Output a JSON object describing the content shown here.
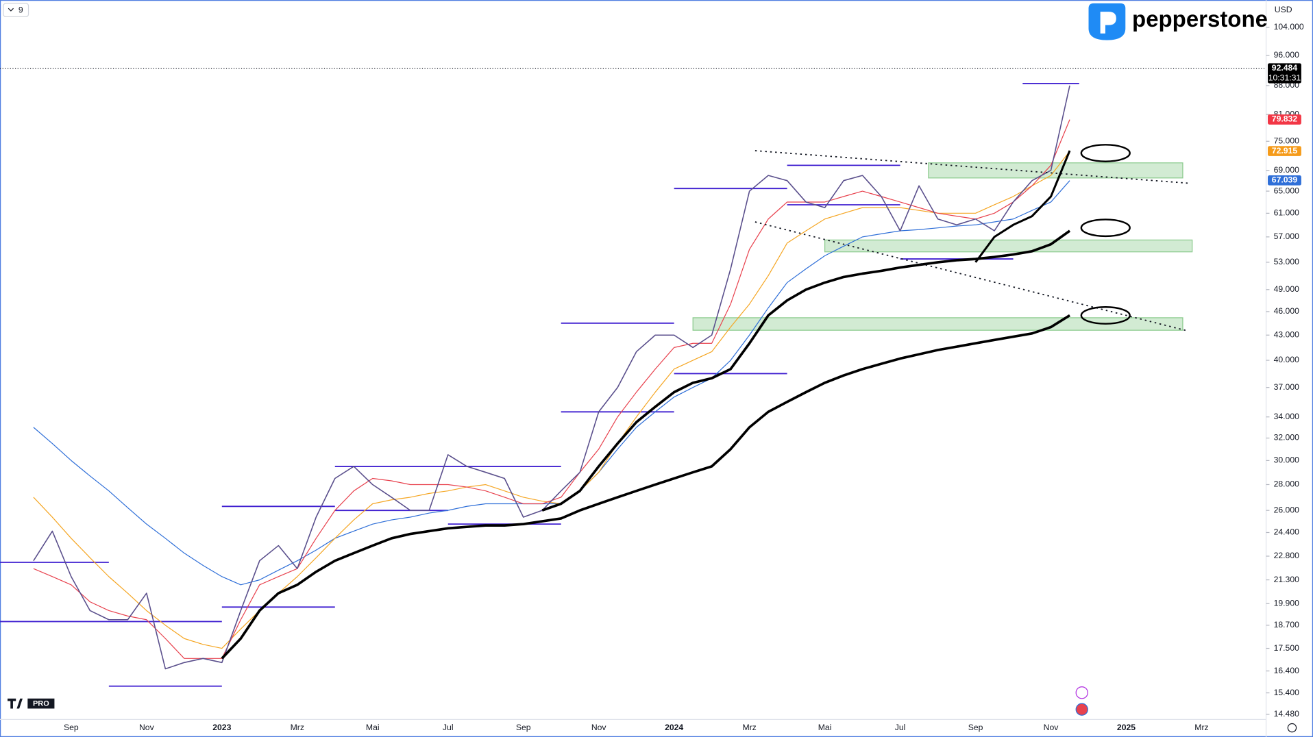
{
  "chart_data": {
    "type": "line",
    "log_scale": true,
    "interval": "9",
    "currency": "USD",
    "brand": "pepperstone",
    "logo_tag": "PRO",
    "categories": [
      null,
      null,
      "Sep",
      null,
      null,
      null,
      "Nov",
      null,
      null,
      null,
      "2023",
      null,
      null,
      null,
      "Mrz",
      null,
      null,
      null,
      "Mai",
      null,
      null,
      null,
      "Jul",
      null,
      null,
      null,
      "Sep",
      null,
      null,
      null,
      "Nov",
      null,
      null,
      null,
      "2024",
      null,
      null,
      null,
      "Mrz",
      null,
      null,
      null,
      "Mai",
      null,
      null,
      null,
      "Jul",
      null,
      null,
      null,
      "Sep",
      null,
      null,
      null,
      "Nov",
      null,
      null,
      null,
      "2025",
      null,
      null,
      null,
      "Mrz"
    ],
    "ylim": [
      14.27,
      112.5
    ],
    "yticks": [
      {
        "value": 104,
        "label": "104.000"
      },
      {
        "value": 96,
        "label": "96.000"
      },
      {
        "value": 88,
        "label": "88.000"
      },
      {
        "value": 81,
        "label": "81.000"
      },
      {
        "value": 75,
        "label": "75.000"
      },
      {
        "value": 69,
        "label": "69.000"
      },
      {
        "value": 65,
        "label": "65.000"
      },
      {
        "value": 61,
        "label": "61.000"
      },
      {
        "value": 57,
        "label": "57.000"
      },
      {
        "value": 53,
        "label": "53.000"
      },
      {
        "value": 49,
        "label": "49.000"
      },
      {
        "value": 46,
        "label": "46.000"
      },
      {
        "value": 43,
        "label": "43.000"
      },
      {
        "value": 40,
        "label": "40.000"
      },
      {
        "value": 37,
        "label": "37.000"
      },
      {
        "value": 34,
        "label": "34.000"
      },
      {
        "value": 32,
        "label": "32.000"
      },
      {
        "value": 30,
        "label": "30.000"
      },
      {
        "value": 28,
        "label": "28.000"
      },
      {
        "value": 26,
        "label": "26.000"
      },
      {
        "value": 24.4,
        "label": "24.400"
      },
      {
        "value": 22.8,
        "label": "22.800"
      },
      {
        "value": 21.3,
        "label": "21.300"
      },
      {
        "value": 19.9,
        "label": "19.900"
      },
      {
        "value": 18.7,
        "label": "18.700"
      },
      {
        "value": 17.5,
        "label": "17.500"
      },
      {
        "value": 16.4,
        "label": "16.400"
      },
      {
        "value": 15.4,
        "label": "15.400"
      },
      {
        "value": 14.48,
        "label": "14.480"
      }
    ],
    "series": [
      {
        "color": "#2f6fd8",
        "width": 1,
        "values": [
          33,
          31.5,
          30,
          28.7,
          27.5,
          26.2,
          25,
          24,
          23,
          22.2,
          21.5,
          21,
          21.3,
          21.9,
          22.5,
          23.2,
          24,
          24.5,
          25,
          25.3,
          25.5,
          25.8,
          26,
          26.3,
          26.5,
          26.5,
          26.5,
          26.5,
          26.5,
          27.5,
          29,
          31,
          33,
          34.5,
          36,
          37,
          38,
          40,
          43,
          46.5,
          50,
          52,
          54,
          55.5,
          57,
          57.5,
          58,
          58.2,
          58.5,
          58.8,
          59,
          59.5,
          60,
          61.5,
          63,
          67,
          null,
          null,
          null,
          null,
          null,
          null,
          null
        ]
      },
      {
        "color": "#f5a623",
        "width": 1,
        "values": [
          27,
          25.5,
          24,
          22.7,
          21.5,
          20.5,
          19.5,
          18.7,
          18,
          17.7,
          17.5,
          18.5,
          19.5,
          20.5,
          21.5,
          22.7,
          24,
          25.3,
          26.5,
          26.8,
          27,
          27.3,
          27.5,
          27.8,
          28,
          27.5,
          27,
          26.7,
          26.5,
          27.5,
          29,
          31.5,
          34,
          36.5,
          39,
          40,
          41,
          44,
          47,
          51,
          56,
          58,
          60,
          61,
          62,
          62,
          62,
          61.5,
          61,
          61,
          61,
          62.5,
          64,
          66,
          68,
          72.9,
          null,
          null,
          null,
          null,
          null,
          null,
          null
        ]
      },
      {
        "color": "#e8424e",
        "width": 1,
        "values": [
          22,
          21.5,
          21,
          20,
          19.5,
          19.2,
          19,
          18,
          17,
          17,
          17,
          19,
          21,
          21.5,
          22,
          24,
          26,
          27.5,
          28.5,
          28.3,
          28,
          28,
          28,
          27.8,
          27.5,
          27,
          26.5,
          26.5,
          27,
          29,
          31,
          34,
          36.5,
          39,
          41.5,
          42,
          42,
          47,
          55,
          60,
          63,
          63,
          63,
          64,
          65,
          64,
          63,
          62,
          61,
          60.5,
          60,
          61,
          63,
          66,
          70,
          79.8,
          null,
          null,
          null,
          null,
          null,
          null,
          null
        ]
      },
      {
        "color": "#5a4f8c",
        "width": 1.3,
        "values": [
          22.5,
          24.5,
          21.5,
          19.5,
          19,
          19,
          20.5,
          16.5,
          16.8,
          17,
          16.8,
          19.5,
          22.5,
          23.5,
          22,
          25.5,
          28.5,
          29.5,
          28,
          27,
          26,
          26,
          30.5,
          29.5,
          29,
          28.5,
          25.5,
          26,
          27.5,
          29,
          34.5,
          37,
          41,
          43,
          43,
          41.5,
          43,
          52,
          65,
          68,
          67,
          63,
          62,
          67,
          68,
          64,
          58,
          66,
          60,
          59,
          60,
          58,
          63,
          67,
          69,
          88,
          null,
          null,
          null,
          null,
          null,
          null,
          null
        ]
      },
      {
        "color": "#000000",
        "width": 3,
        "values": [
          null,
          null,
          null,
          null,
          null,
          null,
          null,
          null,
          null,
          null,
          17,
          18,
          19.5,
          20.5,
          21,
          21.8,
          22.5,
          23,
          23.5,
          24,
          24.3,
          24.5,
          24.7,
          24.8,
          24.9,
          24.9,
          25,
          25.2,
          25.4,
          26,
          26.5,
          27,
          27.5,
          28,
          28.5,
          29,
          29.5,
          31,
          33,
          34.5,
          35.5,
          36.5,
          37.5,
          38.3,
          39,
          39.6,
          40.2,
          40.7,
          41.2,
          41.6,
          42,
          42.4,
          42.8,
          43.2,
          44,
          45.5,
          null,
          null,
          null,
          null,
          null,
          null,
          null
        ]
      },
      {
        "color": "#000000",
        "width": 3,
        "values": [
          null,
          null,
          null,
          null,
          null,
          null,
          null,
          null,
          null,
          null,
          null,
          null,
          null,
          null,
          null,
          null,
          null,
          null,
          null,
          null,
          null,
          null,
          null,
          null,
          null,
          null,
          null,
          26,
          26.5,
          27.5,
          29.5,
          31.5,
          33.5,
          35,
          36.5,
          37.5,
          38,
          39,
          42,
          45.5,
          47.5,
          49,
          50,
          50.8,
          51.3,
          51.7,
          52.2,
          52.6,
          53,
          53.3,
          53.5,
          53.8,
          54.2,
          54.7,
          55.8,
          58,
          null,
          null,
          null,
          null,
          null,
          null,
          null
        ]
      },
      {
        "color": "#000000",
        "width": 2.5,
        "values": [
          null,
          null,
          null,
          null,
          null,
          null,
          null,
          null,
          null,
          null,
          null,
          null,
          null,
          null,
          null,
          null,
          null,
          null,
          null,
          null,
          null,
          null,
          null,
          null,
          null,
          null,
          null,
          null,
          null,
          null,
          null,
          null,
          null,
          null,
          null,
          null,
          null,
          null,
          null,
          null,
          null,
          null,
          null,
          null,
          null,
          null,
          null,
          null,
          null,
          null,
          53,
          57,
          59,
          60.5,
          64,
          73,
          null,
          null,
          null,
          null,
          null,
          null,
          null
        ]
      }
    ],
    "levels": [
      {
        "x0": -1.8,
        "x1": 4,
        "value": 22.4
      },
      {
        "x0": -1.8,
        "x1": 10,
        "value": 18.9
      },
      {
        "x0": 4,
        "x1": 10,
        "value": 15.7
      },
      {
        "x0": 10,
        "x1": 16,
        "value": 26.3
      },
      {
        "x0": 10,
        "x1": 16,
        "value": 19.7
      },
      {
        "x0": 16,
        "x1": 28,
        "value": 29.5
      },
      {
        "x0": 16,
        "x1": 22,
        "value": 26
      },
      {
        "x0": 22,
        "x1": 28,
        "value": 25
      },
      {
        "x0": 28,
        "x1": 34,
        "value": 44.5
      },
      {
        "x0": 28,
        "x1": 34,
        "value": 34.5
      },
      {
        "x0": 34,
        "x1": 40,
        "value": 38.5
      },
      {
        "x0": 34,
        "x1": 40,
        "value": 65.5
      },
      {
        "x0": 40,
        "x1": 46,
        "value": 70
      },
      {
        "x0": 40,
        "x1": 46,
        "value": 62.5
      },
      {
        "x0": 46,
        "x1": 52,
        "value": 53.5
      },
      {
        "x0": 52.5,
        "x1": 55.5,
        "value": 88.5
      }
    ],
    "zones": [
      {
        "x0": 35,
        "x1": 61,
        "low": 43.6,
        "high": 45.2
      },
      {
        "x0": 47.5,
        "x1": 61,
        "low": 67.5,
        "high": 70.5
      },
      {
        "x0": 42,
        "x1": 61.5,
        "low": 54.6,
        "high": 56.5
      }
    ],
    "trendlines": [
      {
        "x0": 38.3,
        "y0": 73,
        "x1": 61.3,
        "y1": 66.5
      },
      {
        "x0": 38.3,
        "y0": 59.5,
        "x1": 61.3,
        "y1": 43.5
      }
    ],
    "markers": [
      {
        "x": 56.9,
        "y": 72.5
      },
      {
        "x": 56.9,
        "y": 58.5
      },
      {
        "x": 56.9,
        "y": 45.5
      }
    ],
    "badges": [
      {
        "value": 92.484,
        "color": "#000000",
        "sub": "10:31:31"
      },
      {
        "value": 79.832,
        "color": "#f23645"
      },
      {
        "value": 72.915,
        "color": "#f59b1a"
      },
      {
        "value": 67.039,
        "color": "#2f6fd8"
      }
    ]
  }
}
